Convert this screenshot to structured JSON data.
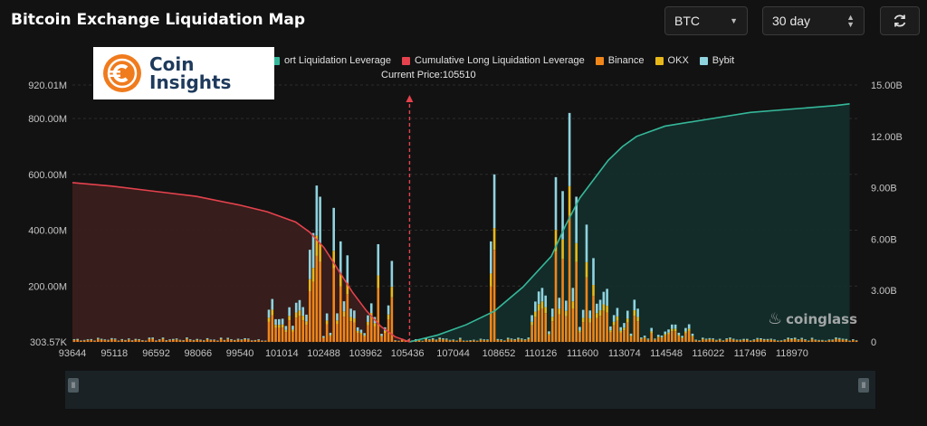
{
  "header": {
    "title": "Bitcoin Exchange Liquidation Map",
    "coin_select": "BTC",
    "range_select": "30 day"
  },
  "logo": {
    "line1": "Coin",
    "line2": "Insights"
  },
  "watermark": "coinglass",
  "colors": {
    "background": "#121212",
    "short_leverage": "#35b89a",
    "long_leverage": "#e5424d",
    "binance": "#f0861a",
    "okx": "#e8b81a",
    "bybit": "#8fd3df"
  },
  "chart_data": {
    "type": "bar",
    "legend": {
      "placement": "top",
      "items": [
        {
          "name": "ort Liquidation Leverage",
          "color": "#35b89a"
        },
        {
          "name": "Cumulative Long Liquidation Leverage",
          "color": "#e5424d"
        },
        {
          "name": "Binance",
          "color": "#f0861a"
        },
        {
          "name": "OKX",
          "color": "#e8b81a"
        },
        {
          "name": "Bybit",
          "color": "#8fd3df"
        }
      ]
    },
    "current_price_label": "Current Price:105510",
    "current_price": 105510,
    "x_range": [
      93644,
      121300
    ],
    "x_ticks": [
      "93644",
      "95118",
      "96592",
      "98066",
      "99540",
      "101014",
      "102488",
      "103962",
      "105436",
      "107044",
      "108652",
      "110126",
      "111600",
      "113074",
      "114548",
      "116022",
      "117496",
      "118970"
    ],
    "y_left_ticks": [
      "920.01M",
      "800.00M",
      "600.00M",
      "400.00M",
      "200.00M",
      "303.57K"
    ],
    "y_left_range": [
      303570,
      920010000
    ],
    "y_right_ticks": [
      "15.00B",
      "12.00B",
      "9.00B",
      "6.00B",
      "3.00B",
      "0"
    ],
    "y_right_range": [
      0,
      15000000000
    ],
    "grid": true,
    "cumulative_long": {
      "x": [
        93644,
        95000,
        96500,
        98000,
        99500,
        100500,
        101500,
        102000,
        102500,
        103000,
        103500,
        104000,
        104500,
        105000,
        105510
      ],
      "y_billions": [
        9.3,
        9.1,
        8.8,
        8.5,
        8.0,
        7.6,
        7.0,
        6.4,
        5.5,
        4.2,
        2.9,
        1.8,
        0.9,
        0.3,
        0.0
      ]
    },
    "cumulative_short": {
      "x": [
        105510,
        106500,
        107500,
        108500,
        109500,
        110500,
        111000,
        111500,
        112000,
        112500,
        113000,
        113500,
        114500,
        116000,
        117500,
        119000,
        120500,
        121000
      ],
      "y_billions": [
        0.0,
        0.4,
        1.0,
        1.8,
        3.2,
        5.0,
        6.8,
        8.4,
        9.5,
        10.6,
        11.4,
        12.0,
        12.6,
        13.0,
        13.4,
        13.6,
        13.8,
        13.9
      ]
    },
    "spikes_millions": [
      {
        "x": 102000,
        "v": 330
      },
      {
        "x": 102150,
        "v": 390
      },
      {
        "x": 102300,
        "v": 560
      },
      {
        "x": 102400,
        "v": 520
      },
      {
        "x": 102800,
        "v": 480
      },
      {
        "x": 103050,
        "v": 360
      },
      {
        "x": 103300,
        "v": 310
      },
      {
        "x": 104400,
        "v": 350
      },
      {
        "x": 104900,
        "v": 290
      },
      {
        "x": 108500,
        "v": 600
      },
      {
        "x": 108350,
        "v": 360
      },
      {
        "x": 110700,
        "v": 590
      },
      {
        "x": 110900,
        "v": 540
      },
      {
        "x": 111100,
        "v": 820
      },
      {
        "x": 111400,
        "v": 520
      },
      {
        "x": 111750,
        "v": 420
      },
      {
        "x": 112000,
        "v": 300
      },
      {
        "x": 112500,
        "v": 190
      }
    ]
  }
}
